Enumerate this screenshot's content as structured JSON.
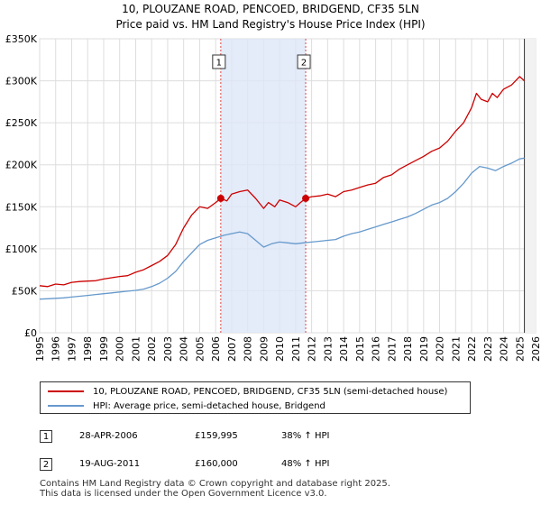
{
  "title_line1": "10, PLOUZANE ROAD, PENCOED, BRIDGEND, CF35 5LN",
  "title_line2": "Price paid vs. HM Land Registry's House Price Index (HPI)",
  "colors": {
    "property": "#cc0000",
    "hpi": "#6699cc",
    "shade": "#dde6f7",
    "grid": "#dddddd"
  },
  "chart_data": {
    "type": "line",
    "title": "10, PLOUZANE ROAD, PENCOED, BRIDGEND, CF35 5LN — Price paid vs. HM Land Registry's House Price Index (HPI)",
    "xlabel": "",
    "ylabel": "",
    "xlim": [
      1995,
      2026
    ],
    "ylim": [
      0,
      350000
    ],
    "y_ticks": [
      0,
      50000,
      100000,
      150000,
      200000,
      250000,
      300000,
      350000
    ],
    "y_tick_labels": [
      "£0",
      "£50K",
      "£100K",
      "£150K",
      "£200K",
      "£250K",
      "£300K",
      "£350K"
    ],
    "x_ticks": [
      1995,
      1996,
      1997,
      1998,
      1999,
      2000,
      2001,
      2002,
      2003,
      2004,
      2005,
      2006,
      2007,
      2008,
      2009,
      2010,
      2011,
      2012,
      2013,
      2014,
      2015,
      2016,
      2017,
      2018,
      2019,
      2020,
      2021,
      2022,
      2023,
      2024,
      2025,
      2026
    ],
    "x_tick_labels": [
      "1995",
      "1996",
      "1997",
      "1998",
      "1999",
      "2000",
      "2001",
      "2002",
      "2003",
      "2004",
      "2005",
      "2006",
      "2007",
      "2008",
      "2009",
      "2010",
      "2011",
      "2012",
      "2013",
      "2014",
      "2015",
      "2016",
      "2017",
      "2018",
      "2019",
      "2020",
      "2021",
      "2022",
      "2023",
      "2024",
      "2025",
      "2026"
    ],
    "shaded_region": [
      2006.32,
      2011.63
    ],
    "series": [
      {
        "name": "10, PLOUZANE ROAD, PENCOED, BRIDGEND, CF35 5LN (semi-detached house)",
        "color": "#cc0000",
        "x": [
          1995,
          1995.5,
          1996,
          1996.5,
          1997,
          1997.5,
          1998,
          1998.5,
          1999,
          1999.5,
          2000,
          2000.5,
          2001,
          2001.5,
          2002,
          2002.5,
          2003,
          2003.5,
          2004,
          2004.5,
          2005,
          2005.5,
          2006,
          2006.32,
          2006.7,
          2007,
          2007.5,
          2008,
          2008.5,
          2009,
          2009.3,
          2009.7,
          2010,
          2010.5,
          2011,
          2011.3,
          2011.63,
          2012,
          2012.5,
          2013,
          2013.5,
          2014,
          2014.5,
          2015,
          2015.5,
          2016,
          2016.5,
          2017,
          2017.5,
          2018,
          2018.5,
          2019,
          2019.5,
          2020,
          2020.5,
          2021,
          2021.5,
          2022,
          2022.3,
          2022.6,
          2023,
          2023.3,
          2023.6,
          2024,
          2024.5,
          2025,
          2025.3
        ],
        "values": [
          56000,
          55000,
          58000,
          57000,
          60000,
          61000,
          61500,
          62000,
          64000,
          65500,
          67000,
          68000,
          72000,
          75000,
          80000,
          85000,
          92000,
          105000,
          125000,
          140000,
          150000,
          148000,
          155000,
          159995,
          157000,
          165000,
          168000,
          170000,
          160000,
          148000,
          155000,
          150000,
          158000,
          155000,
          150000,
          155000,
          160000,
          162000,
          163000,
          165000,
          162000,
          168000,
          170000,
          173000,
          176000,
          178000,
          185000,
          188000,
          195000,
          200000,
          205000,
          210000,
          216000,
          220000,
          228000,
          240000,
          250000,
          268000,
          285000,
          278000,
          275000,
          285000,
          280000,
          290000,
          295000,
          305000,
          300000
        ]
      },
      {
        "name": "HPI: Average price, semi-detached house, Bridgend",
        "color": "#6699cc",
        "x": [
          1995,
          1995.5,
          1996,
          1996.5,
          1997,
          1997.5,
          1998,
          1998.5,
          1999,
          1999.5,
          2000,
          2000.5,
          2001,
          2001.5,
          2002,
          2002.5,
          2003,
          2003.5,
          2004,
          2004.5,
          2005,
          2005.5,
          2006,
          2006.5,
          2007,
          2007.5,
          2008,
          2008.5,
          2009,
          2009.5,
          2010,
          2010.5,
          2011,
          2011.5,
          2012,
          2012.5,
          2013,
          2013.5,
          2014,
          2014.5,
          2015,
          2015.5,
          2016,
          2016.5,
          2017,
          2017.5,
          2018,
          2018.5,
          2019,
          2019.5,
          2020,
          2020.5,
          2021,
          2021.5,
          2022,
          2022.5,
          2023,
          2023.5,
          2024,
          2024.5,
          2025,
          2025.3
        ],
        "values": [
          40000,
          40500,
          41000,
          41500,
          42500,
          43500,
          44500,
          45500,
          46500,
          47500,
          48500,
          49500,
          50500,
          52000,
          55000,
          59000,
          65000,
          73000,
          85000,
          95000,
          105000,
          110000,
          113000,
          116000,
          118000,
          120000,
          118000,
          110000,
          102000,
          106000,
          108000,
          107000,
          106000,
          107000,
          108000,
          109000,
          110000,
          111000,
          115000,
          118000,
          120000,
          123000,
          126000,
          129000,
          132000,
          135000,
          138000,
          142000,
          147000,
          152000,
          155000,
          160000,
          168000,
          178000,
          190000,
          198000,
          196000,
          193000,
          198000,
          202000,
          207000,
          208000
        ]
      }
    ],
    "annotations": [
      {
        "label": "1",
        "x": 2006.32,
        "value": 159995
      },
      {
        "label": "2",
        "x": 2011.63,
        "value": 160000
      }
    ]
  },
  "legend": {
    "property_label": "10, PLOUZANE ROAD, PENCOED, BRIDGEND, CF35 5LN (semi-detached house)",
    "hpi_label": "HPI: Average price, semi-detached house, Bridgend"
  },
  "transactions": [
    {
      "num": "1",
      "date": "28-APR-2006",
      "price": "£159,995",
      "delta": "38% ↑ HPI"
    },
    {
      "num": "2",
      "date": "19-AUG-2011",
      "price": "£160,000",
      "delta": "48% ↑ HPI"
    }
  ],
  "footer": {
    "line1": "Contains HM Land Registry data © Crown copyright and database right 2025.",
    "line2": "This data is licensed under the Open Government Licence v3.0."
  }
}
